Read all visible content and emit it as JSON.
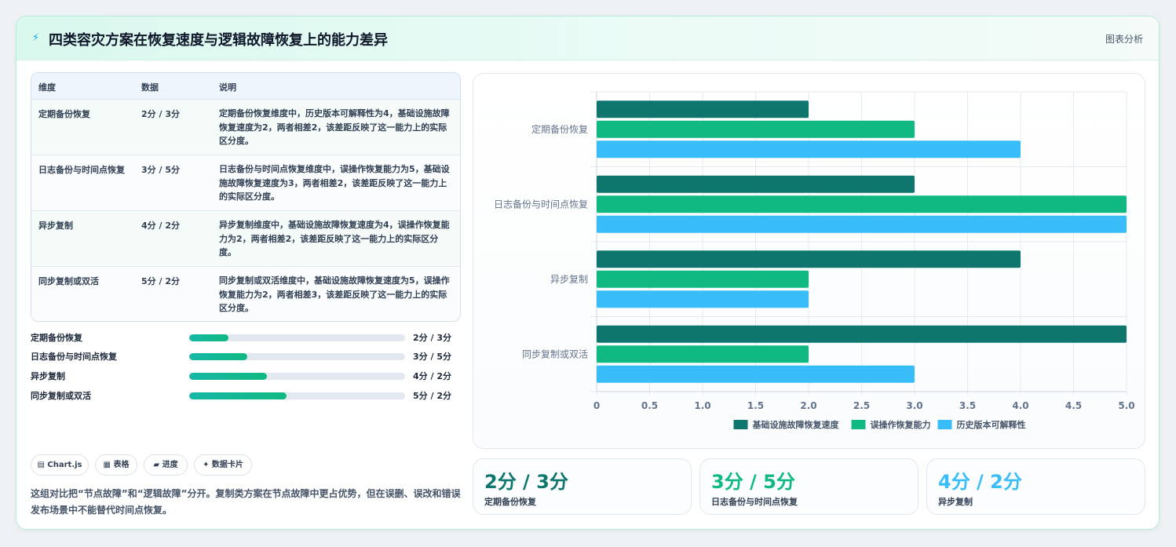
{
  "header": {
    "icon": "bolt-icon",
    "title": "四类容灾方案在恢复速度与逻辑故障恢复上的能力差异",
    "tag": "图表分析"
  },
  "table": {
    "columns": [
      "维度",
      "数据",
      "说明"
    ],
    "rows": [
      {
        "dim": "定期备份恢复",
        "data": "2分 / 3分",
        "desc": "定期备份恢复维度中，历史版本可解释性为4，基础设施故障恢复速度为2，两者相差2，该差距反映了这一能力上的实际区分度。"
      },
      {
        "dim": "日志备份与时间点恢复",
        "data": "3分 / 5分",
        "desc": "日志备份与时间点恢复维度中，误操作恢复能力为5，基础设施故障恢复速度为3，两者相差2，该差距反映了这一能力上的实际区分度。"
      },
      {
        "dim": "异步复制",
        "data": "4分 / 2分",
        "desc": "异步复制维度中，基础设施故障恢复速度为4，误操作恢复能力为2，两者相差2，该差距反映了这一能力上的实际区分度。"
      },
      {
        "dim": "同步复制或双活",
        "data": "5分 / 2分",
        "desc": "同步复制或双活维度中，基础设施故障恢复速度为5，误操作恢复能力为2，两者相差3，该差距反映了这一能力上的实际区分度。"
      }
    ]
  },
  "progress": [
    {
      "label": "定期备份恢复",
      "value": "2分 / 3分",
      "fraction": 0.18
    },
    {
      "label": "日志备份与时间点恢复",
      "value": "3分 / 5分",
      "fraction": 0.27
    },
    {
      "label": "异步复制",
      "value": "4分 / 2分",
      "fraction": 0.36
    },
    {
      "label": "同步复制或双活",
      "value": "5分 / 2分",
      "fraction": 0.45
    }
  ],
  "chips": [
    "▤ Chart.js",
    "▦ 表格",
    "▰ 进度",
    "✦ 数据卡片"
  ],
  "note": "这组对比把“节点故障”和“逻辑故障”分开。复制类方案在节点故障中更占优势，但在误删、误改和错误发布场景中不能替代时间点恢复。",
  "stats": [
    {
      "big": "2分 / 3分",
      "small": "定期备份恢复",
      "color": "#0f766e"
    },
    {
      "big": "3分 / 5分",
      "small": "日志备份与时间点恢复",
      "color": "#10b981"
    },
    {
      "big": "4分 / 2分",
      "small": "异步复制",
      "color": "#38bdf8"
    }
  ],
  "chart_data": {
    "type": "bar",
    "orientation": "horizontal",
    "categories": [
      "定期备份恢复",
      "日志备份与时间点恢复",
      "异步复制",
      "同步复制或双活"
    ],
    "series": [
      {
        "name": "基础设施故障恢复速度",
        "values": [
          2,
          3,
          4,
          5
        ],
        "color": "#0f766e"
      },
      {
        "name": "误操作恢复能力",
        "values": [
          3,
          5,
          2,
          2
        ],
        "color": "#10b981"
      },
      {
        "name": "历史版本可解释性",
        "values": [
          4,
          5,
          2,
          3
        ],
        "color": "#38bdf8"
      }
    ],
    "xlim": [
      0,
      5
    ],
    "xticks": [
      "0",
      "0.5",
      "1.0",
      "1.5",
      "2.0",
      "2.5",
      "3.0",
      "3.5",
      "4.0",
      "4.5",
      "5.0"
    ],
    "grid": true,
    "legend": "bottom"
  }
}
